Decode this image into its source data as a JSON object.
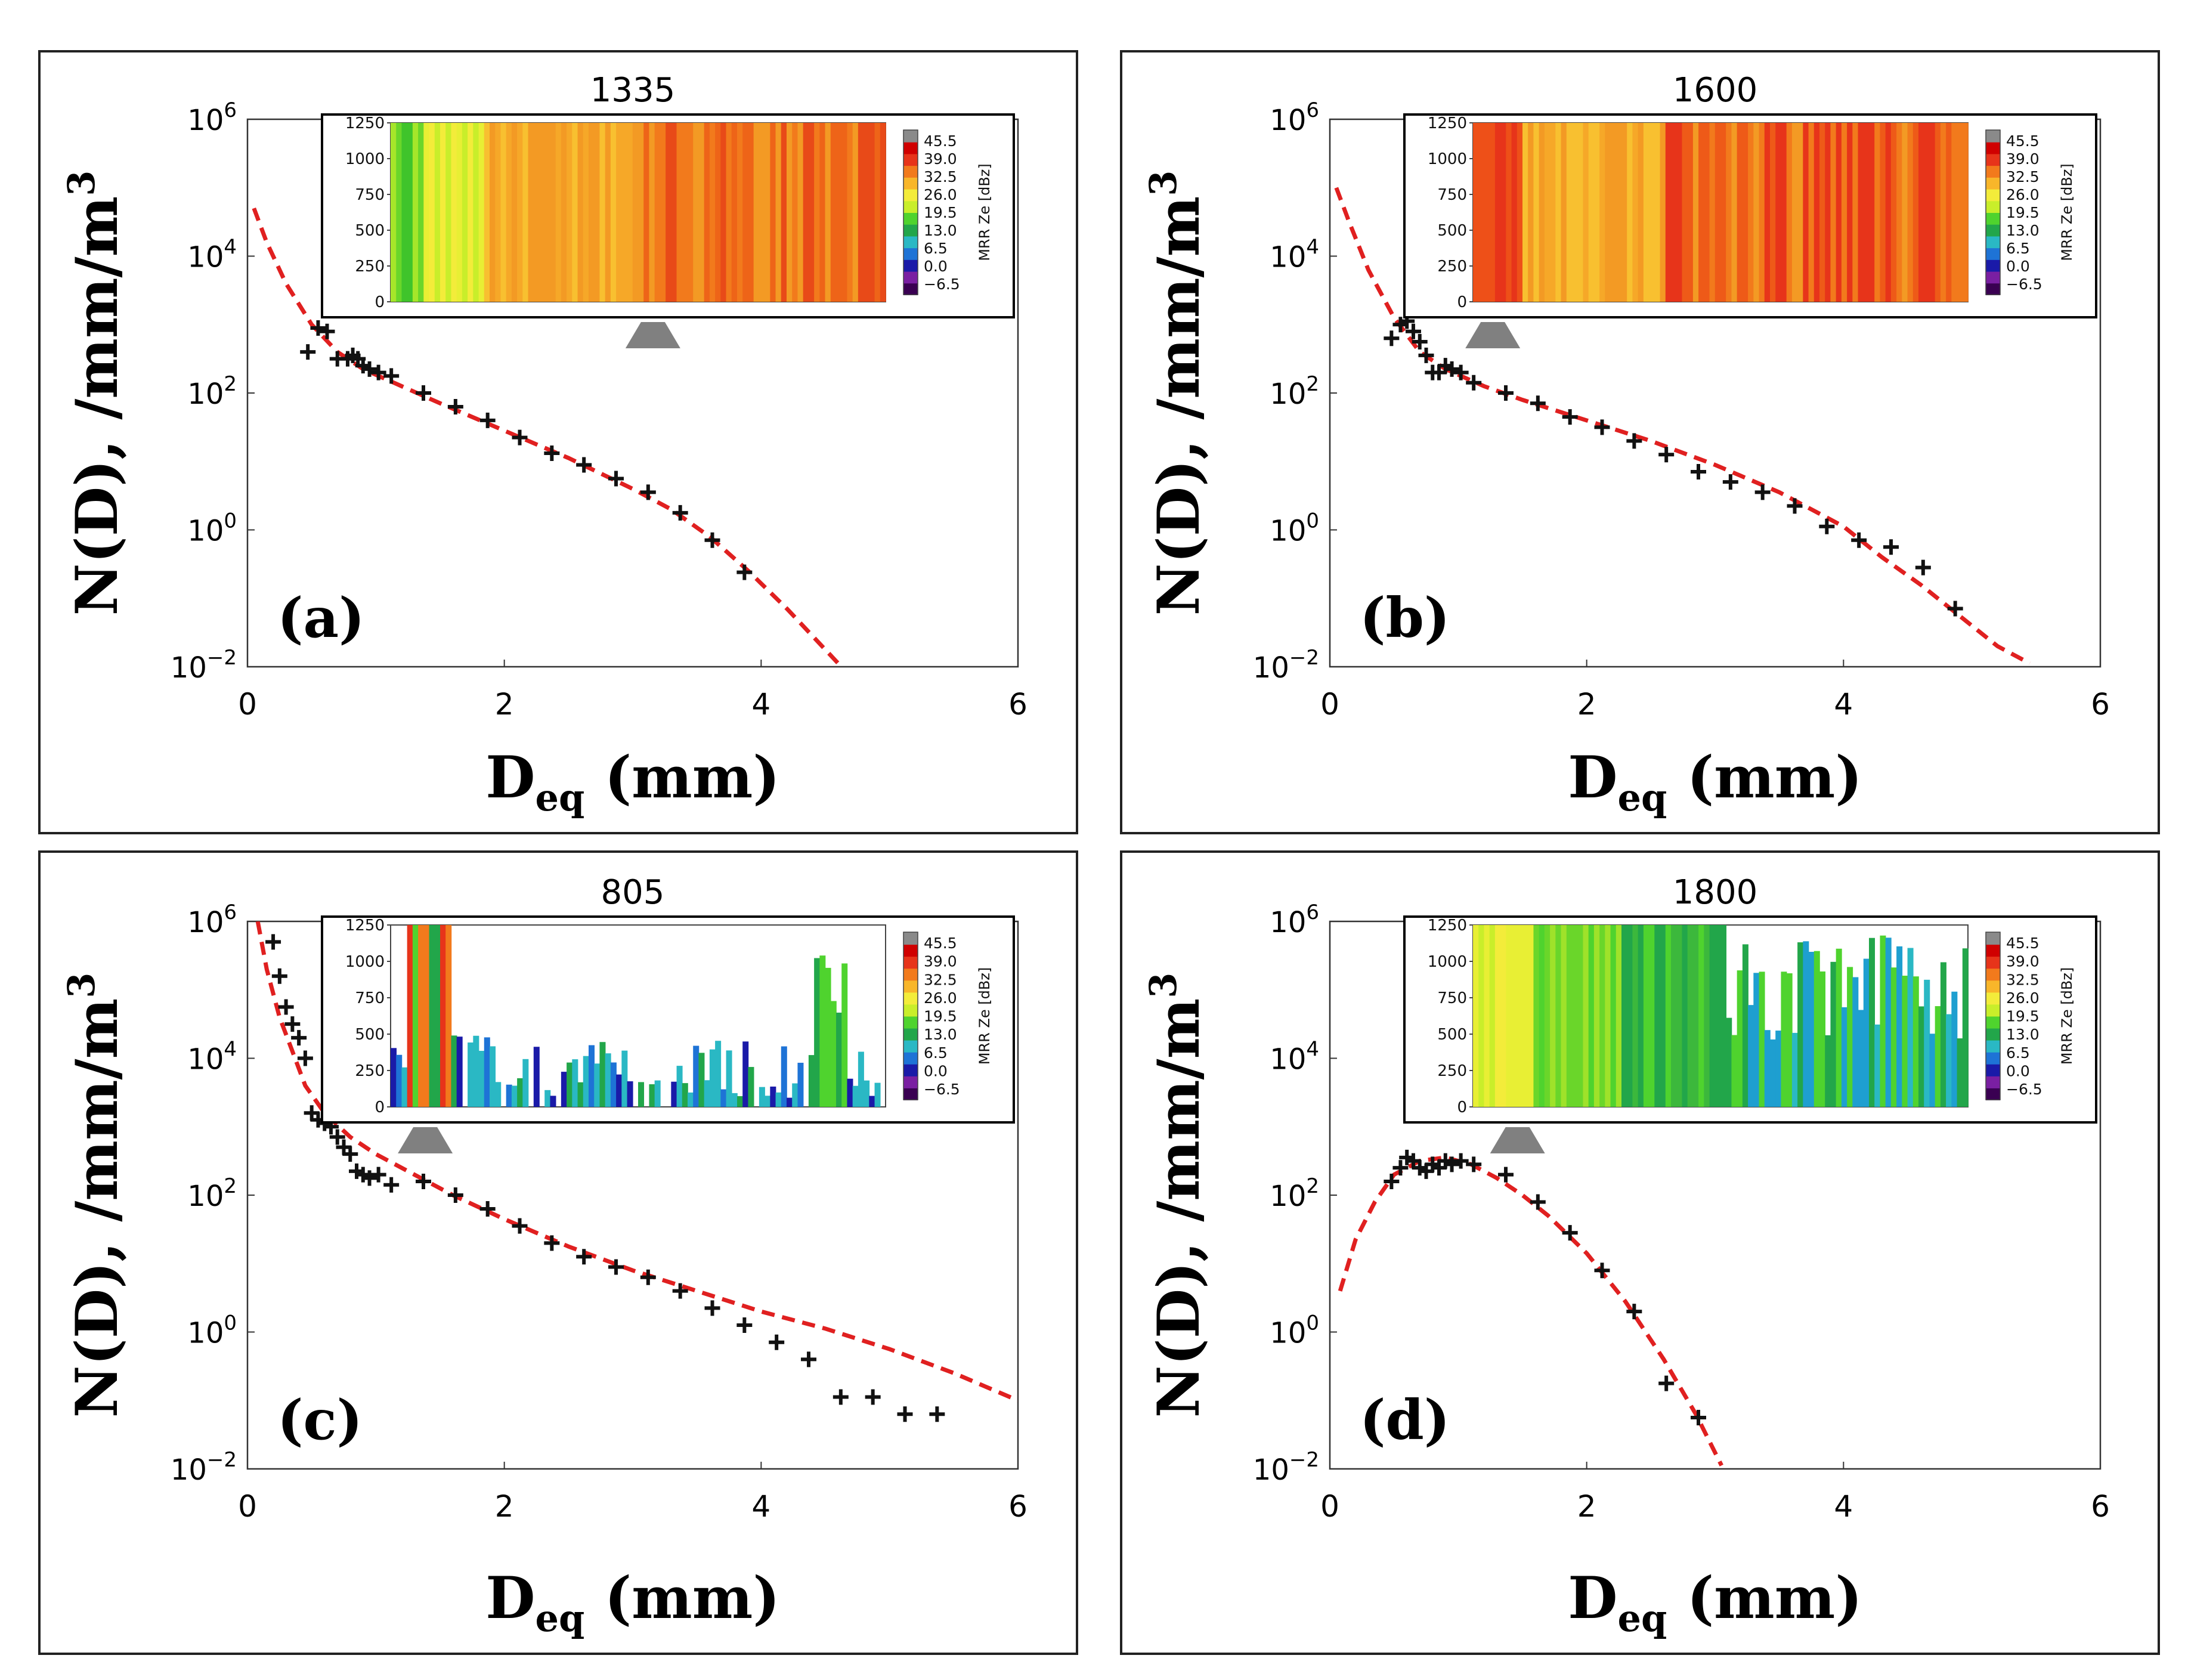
{
  "figure": {
    "colorbar_ticks": [
      "45.5",
      "39.0",
      "32.5",
      "26.0",
      "19.5",
      "13.0",
      "6.5",
      "0.0",
      "−6.5"
    ],
    "colorbar_label": "MRR Ze [dBz]",
    "colorbar_colors": [
      "#3a0052",
      "#7a1fa2",
      "#1a1aa8",
      "#1e73d6",
      "#2ab8c4",
      "#22a64a",
      "#4fd32e",
      "#c9ee2a",
      "#f3ec3a",
      "#f8b62a",
      "#f27a1c",
      "#e7341a",
      "#d00000",
      "#8a8a8a"
    ],
    "inset_yticks": [
      "1250",
      "1000",
      "750",
      "500",
      "250",
      "0"
    ],
    "y_tick_base": "10",
    "fit_color": "#e02020",
    "marker_color": "#111111",
    "triangle_color": "#808080"
  },
  "chart_data": [
    {
      "type": "scatter",
      "panel_label": "(a)",
      "title": "1335",
      "xlabel_main": "D",
      "xlabel_sub": "eq",
      "xlabel_rest": " (mm)",
      "ylabel": "N(D), /mm/m",
      "ylabel_sup": "3",
      "xlim": [
        0,
        6
      ],
      "ylim_log10": [
        -2,
        6
      ],
      "xticks": [
        "0",
        "2",
        "4",
        "6"
      ],
      "yticks": [
        {
          "base": "10",
          "exp": "6"
        },
        {
          "base": "10",
          "exp": "4"
        },
        {
          "base": "10",
          "exp": "2"
        },
        {
          "base": "10",
          "exp": "0"
        },
        {
          "base": "10",
          "exp": "−2"
        }
      ],
      "inset_style": "warm-dense",
      "triangle_x_frac": 0.53,
      "series": [
        {
          "name": "observed",
          "x": [
            0.47,
            0.55,
            0.62,
            0.7,
            0.78,
            0.82,
            0.86,
            0.9,
            0.95,
            1.02,
            1.12,
            1.37,
            1.62,
            1.87,
            2.12,
            2.37,
            2.62,
            2.87,
            3.12,
            3.37,
            3.62,
            3.87
          ],
          "log10_y": [
            2.6,
            2.95,
            2.9,
            2.5,
            2.5,
            2.55,
            2.5,
            2.4,
            2.35,
            2.3,
            2.25,
            2.0,
            1.8,
            1.6,
            1.35,
            1.12,
            0.95,
            0.75,
            0.55,
            0.25,
            -0.15,
            -0.62
          ]
        },
        {
          "name": "fit",
          "x": [
            0.05,
            0.15,
            0.3,
            0.5,
            0.7,
            0.9,
            1.2,
            1.5,
            2.0,
            2.5,
            3.0,
            3.3,
            3.6,
            3.9,
            4.2,
            4.4,
            4.6
          ],
          "log10_y": [
            4.7,
            4.2,
            3.6,
            3.0,
            2.6,
            2.35,
            2.1,
            1.85,
            1.45,
            1.05,
            0.6,
            0.3,
            -0.1,
            -0.6,
            -1.15,
            -1.55,
            -1.95
          ]
        }
      ]
    },
    {
      "type": "scatter",
      "panel_label": "(b)",
      "title": "1600",
      "xlabel_main": "D",
      "xlabel_sub": "eq",
      "xlabel_rest": " (mm)",
      "ylabel": "N(D), /mm/m",
      "ylabel_sup": "3",
      "xlim": [
        0,
        6
      ],
      "ylim_log10": [
        -2,
        6
      ],
      "xticks": [
        "0",
        "2",
        "4",
        "6"
      ],
      "yticks": [
        {
          "base": "10",
          "exp": "6"
        },
        {
          "base": "10",
          "exp": "4"
        },
        {
          "base": "10",
          "exp": "2"
        },
        {
          "base": "10",
          "exp": "0"
        },
        {
          "base": "10",
          "exp": "−2"
        }
      ],
      "inset_style": "red-dense",
      "triangle_x_frac": 0.04,
      "series": [
        {
          "name": "observed",
          "x": [
            0.48,
            0.55,
            0.6,
            0.65,
            0.7,
            0.75,
            0.8,
            0.85,
            0.9,
            0.95,
            1.02,
            1.12,
            1.37,
            1.62,
            1.87,
            2.12,
            2.37,
            2.62,
            2.87,
            3.12,
            3.37,
            3.62,
            3.87,
            4.12,
            4.37,
            4.62,
            4.87
          ],
          "log10_y": [
            2.8,
            3.0,
            3.05,
            2.9,
            2.75,
            2.55,
            2.3,
            2.3,
            2.4,
            2.35,
            2.3,
            2.15,
            2.0,
            1.85,
            1.65,
            1.5,
            1.3,
            1.1,
            0.85,
            0.7,
            0.55,
            0.35,
            0.05,
            -0.15,
            -0.25,
            -0.55,
            -1.15
          ]
        },
        {
          "name": "fit",
          "x": [
            0.05,
            0.15,
            0.3,
            0.5,
            0.7,
            0.9,
            1.2,
            1.5,
            2.0,
            2.5,
            3.0,
            3.5,
            4.0,
            4.3,
            4.6,
            4.9,
            5.2,
            5.45
          ],
          "log10_y": [
            5.0,
            4.5,
            3.8,
            3.1,
            2.6,
            2.35,
            2.1,
            1.9,
            1.6,
            1.3,
            0.95,
            0.55,
            0.05,
            -0.4,
            -0.8,
            -1.25,
            -1.7,
            -1.95
          ]
        }
      ]
    },
    {
      "type": "scatter",
      "panel_label": "(c)",
      "title": "805",
      "xlabel_main": "D",
      "xlabel_sub": "eq",
      "xlabel_rest": " (mm)",
      "ylabel": "N(D), /mm/m",
      "ylabel_sup": "3",
      "xlim": [
        0,
        6
      ],
      "ylim_log10": [
        -2,
        6
      ],
      "xticks": [
        "0",
        "2",
        "4",
        "6"
      ],
      "yticks": [
        {
          "base": "10",
          "exp": "6"
        },
        {
          "base": "10",
          "exp": "4"
        },
        {
          "base": "10",
          "exp": "2"
        },
        {
          "base": "10",
          "exp": "0"
        },
        {
          "base": "10",
          "exp": "−2"
        }
      ],
      "inset_style": "sparse-cool",
      "triangle_x_frac": 0.07,
      "series": [
        {
          "name": "observed",
          "x": [
            0.2,
            0.25,
            0.3,
            0.35,
            0.4,
            0.45,
            0.5,
            0.55,
            0.6,
            0.65,
            0.7,
            0.75,
            0.8,
            0.85,
            0.9,
            0.95,
            1.02,
            1.12,
            1.37,
            1.62,
            1.87,
            2.12,
            2.37,
            2.62,
            2.87,
            3.12,
            3.37,
            3.62,
            3.87,
            4.12,
            4.37,
            4.62,
            4.87,
            5.12,
            5.37
          ],
          "log10_y": [
            5.7,
            5.2,
            4.75,
            4.5,
            4.3,
            4.0,
            3.2,
            3.1,
            3.05,
            3.0,
            2.85,
            2.7,
            2.6,
            2.35,
            2.3,
            2.25,
            2.3,
            2.15,
            2.2,
            2.0,
            1.8,
            1.55,
            1.3,
            1.1,
            0.95,
            0.8,
            0.6,
            0.35,
            0.1,
            -0.15,
            -0.4,
            -0.95,
            -0.95,
            -1.2,
            -1.2
          ]
        },
        {
          "name": "fit",
          "x": [
            0.08,
            0.15,
            0.25,
            0.35,
            0.45,
            0.6,
            0.8,
            1.0,
            1.3,
            1.6,
            2.0,
            2.5,
            3.0,
            3.5,
            4.0,
            4.5,
            5.0,
            5.5,
            6.0
          ],
          "log10_y": [
            6.0,
            5.3,
            4.6,
            4.1,
            3.6,
            3.2,
            2.85,
            2.6,
            2.3,
            2.0,
            1.65,
            1.25,
            0.9,
            0.6,
            0.3,
            0.05,
            -0.25,
            -0.6,
            -1.0
          ]
        }
      ]
    },
    {
      "type": "scatter",
      "panel_label": "(d)",
      "title": "1800",
      "xlabel_main": "D",
      "xlabel_sub": "eq",
      "xlabel_rest": " (mm)",
      "ylabel": "N(D), /mm/m",
      "ylabel_sup": "3",
      "xlim": [
        0,
        6
      ],
      "ylim_log10": [
        -2,
        6
      ],
      "xticks": [
        "0",
        "2",
        "4",
        "6"
      ],
      "yticks": [
        {
          "base": "10",
          "exp": "6"
        },
        {
          "base": "10",
          "exp": "4"
        },
        {
          "base": "10",
          "exp": "2"
        },
        {
          "base": "10",
          "exp": "0"
        },
        {
          "base": "10",
          "exp": "−2"
        }
      ],
      "inset_style": "green-dense",
      "triangle_x_frac": 0.09,
      "series": [
        {
          "name": "observed",
          "x": [
            0.48,
            0.55,
            0.6,
            0.65,
            0.7,
            0.75,
            0.8,
            0.85,
            0.9,
            0.95,
            1.02,
            1.12,
            1.37,
            1.62,
            1.87,
            2.12,
            2.37,
            2.62,
            2.87
          ],
          "log10_y": [
            2.2,
            2.4,
            2.55,
            2.5,
            2.4,
            2.35,
            2.45,
            2.4,
            2.5,
            2.45,
            2.5,
            2.45,
            2.3,
            1.9,
            1.45,
            0.9,
            0.3,
            -0.75,
            -1.25
          ]
        },
        {
          "name": "fit",
          "x": [
            0.08,
            0.2,
            0.35,
            0.5,
            0.7,
            0.9,
            1.1,
            1.3,
            1.5,
            1.7,
            2.0,
            2.3,
            2.6,
            2.85,
            3.05
          ],
          "log10_y": [
            0.6,
            1.35,
            1.9,
            2.3,
            2.5,
            2.55,
            2.45,
            2.25,
            2.0,
            1.7,
            1.15,
            0.45,
            -0.4,
            -1.2,
            -1.95
          ]
        }
      ]
    }
  ]
}
